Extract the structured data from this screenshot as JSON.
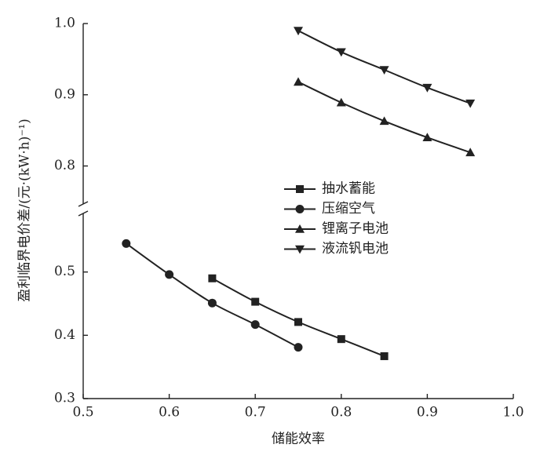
{
  "chart_data": {
    "type": "line",
    "x_label": "储能效率",
    "y_label": "盈利临界电价差/(元·(kW·h)⁻¹)",
    "xlim": [
      0.5,
      1.0
    ],
    "xticks": [
      0.5,
      0.6,
      0.7,
      0.8,
      0.9,
      {
        "value": 1.0,
        "label": "1.0"
      }
    ],
    "ylim": [
      0.3,
      1.0
    ],
    "y_break": [
      0.6,
      0.74
    ],
    "yticks": [
      0.3,
      0.4,
      0.5,
      0.8,
      0.9,
      {
        "value": 1.0,
        "label": "1.0"
      }
    ],
    "legend": "center",
    "series": [
      {
        "name": "抽水蓄能",
        "color": "#222222",
        "marker": "square",
        "x": [
          0.65,
          0.7,
          0.75,
          0.8,
          0.85
        ],
        "values": [
          0.49,
          0.453,
          0.421,
          0.394,
          0.367
        ]
      },
      {
        "name": "压缩空气",
        "color": "#222222",
        "marker": "circle",
        "x": [
          0.55,
          0.6,
          0.65,
          0.7,
          0.75
        ],
        "values": [
          0.545,
          0.496,
          0.451,
          0.417,
          0.381
        ]
      },
      {
        "name": "锂离子电池",
        "color": "#222222",
        "marker": "triangle-up",
        "x": [
          0.75,
          0.8,
          0.85,
          0.9,
          0.95
        ],
        "values": [
          0.918,
          0.889,
          0.863,
          0.84,
          0.819
        ]
      },
      {
        "name": "液流钒电池",
        "color": "#222222",
        "marker": "triangle-down",
        "x": [
          0.75,
          0.8,
          0.85,
          0.9,
          0.95
        ],
        "values": [
          0.99,
          0.96,
          0.935,
          0.91,
          0.888
        ]
      }
    ]
  }
}
